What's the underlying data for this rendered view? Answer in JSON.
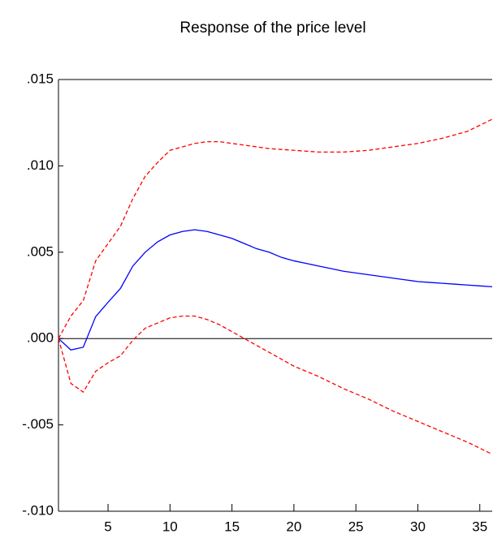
{
  "chart_data": {
    "type": "line",
    "title": "Response of the price level",
    "x": [
      1,
      2,
      3,
      4,
      5,
      6,
      7,
      8,
      9,
      10,
      11,
      12,
      13,
      14,
      15,
      16,
      17,
      18,
      19,
      20,
      21,
      22,
      23,
      24,
      25,
      26,
      27,
      28,
      29,
      30,
      31,
      32,
      33,
      34,
      35,
      36
    ],
    "series": [
      {
        "color": "#0000ff",
        "style": "solid",
        "values": [
          0,
          -0.00066,
          -0.0005,
          0.00127,
          0.0021,
          0.0029,
          0.0042,
          0.005,
          0.0056,
          0.006,
          0.0062,
          0.0063,
          0.0062,
          0.006,
          0.0058,
          0.0055,
          0.0052,
          0.005,
          0.0047,
          0.0045,
          0.00435,
          0.0042,
          0.00405,
          0.0039,
          0.0038,
          0.0037,
          0.0036,
          0.0035,
          0.0034,
          0.0033,
          0.00325,
          0.0032,
          0.00315,
          0.0031,
          0.00305,
          0.003
        ]
      },
      {
        "color": "#ff0000",
        "style": "dashed",
        "values": [
          0,
          0.0013,
          0.0022,
          0.0045,
          0.0055,
          0.0065,
          0.0081,
          0.0094,
          0.0102,
          0.0109,
          0.0111,
          0.0113,
          0.0114,
          0.0114,
          0.0113,
          0.0112,
          0.0111,
          0.011,
          0.01095,
          0.0109,
          0.01085,
          0.0108,
          0.0108,
          0.0108,
          0.01085,
          0.0109,
          0.011,
          0.0111,
          0.0112,
          0.0113,
          0.01145,
          0.0116,
          0.0118,
          0.012,
          0.01235,
          0.0127
        ]
      },
      {
        "color": "#ff0000",
        "style": "dashed",
        "values": [
          0,
          -0.0026,
          -0.0031,
          -0.0019,
          -0.0014,
          -0.001,
          -0.0001,
          0.0006,
          0.0009,
          0.0012,
          0.0013,
          0.0013,
          0.0011,
          0.0008,
          0.0004,
          0,
          -0.0004,
          -0.0008,
          -0.0012,
          -0.0016,
          -0.0019,
          -0.0022,
          -0.00255,
          -0.0029,
          -0.0032,
          -0.0035,
          -0.00385,
          -0.0042,
          -0.0045,
          -0.0048,
          -0.0051,
          -0.0054,
          -0.0057,
          -0.006,
          -0.00635,
          -0.0067
        ]
      }
    ],
    "xlim": [
      1,
      36
    ],
    "xticks": [
      5,
      10,
      15,
      20,
      25,
      30,
      35
    ],
    "ylim": [
      -0.01,
      0.015
    ],
    "yticks": [
      {
        "value": -0.01,
        "label": "-.010"
      },
      {
        "value": -0.005,
        "label": "-.005"
      },
      {
        "value": 0,
        "label": ".000"
      },
      {
        "value": 0.005,
        "label": ".005"
      },
      {
        "value": 0.01,
        "label": ".010"
      },
      {
        "value": 0.015,
        "label": ".015"
      }
    ]
  }
}
